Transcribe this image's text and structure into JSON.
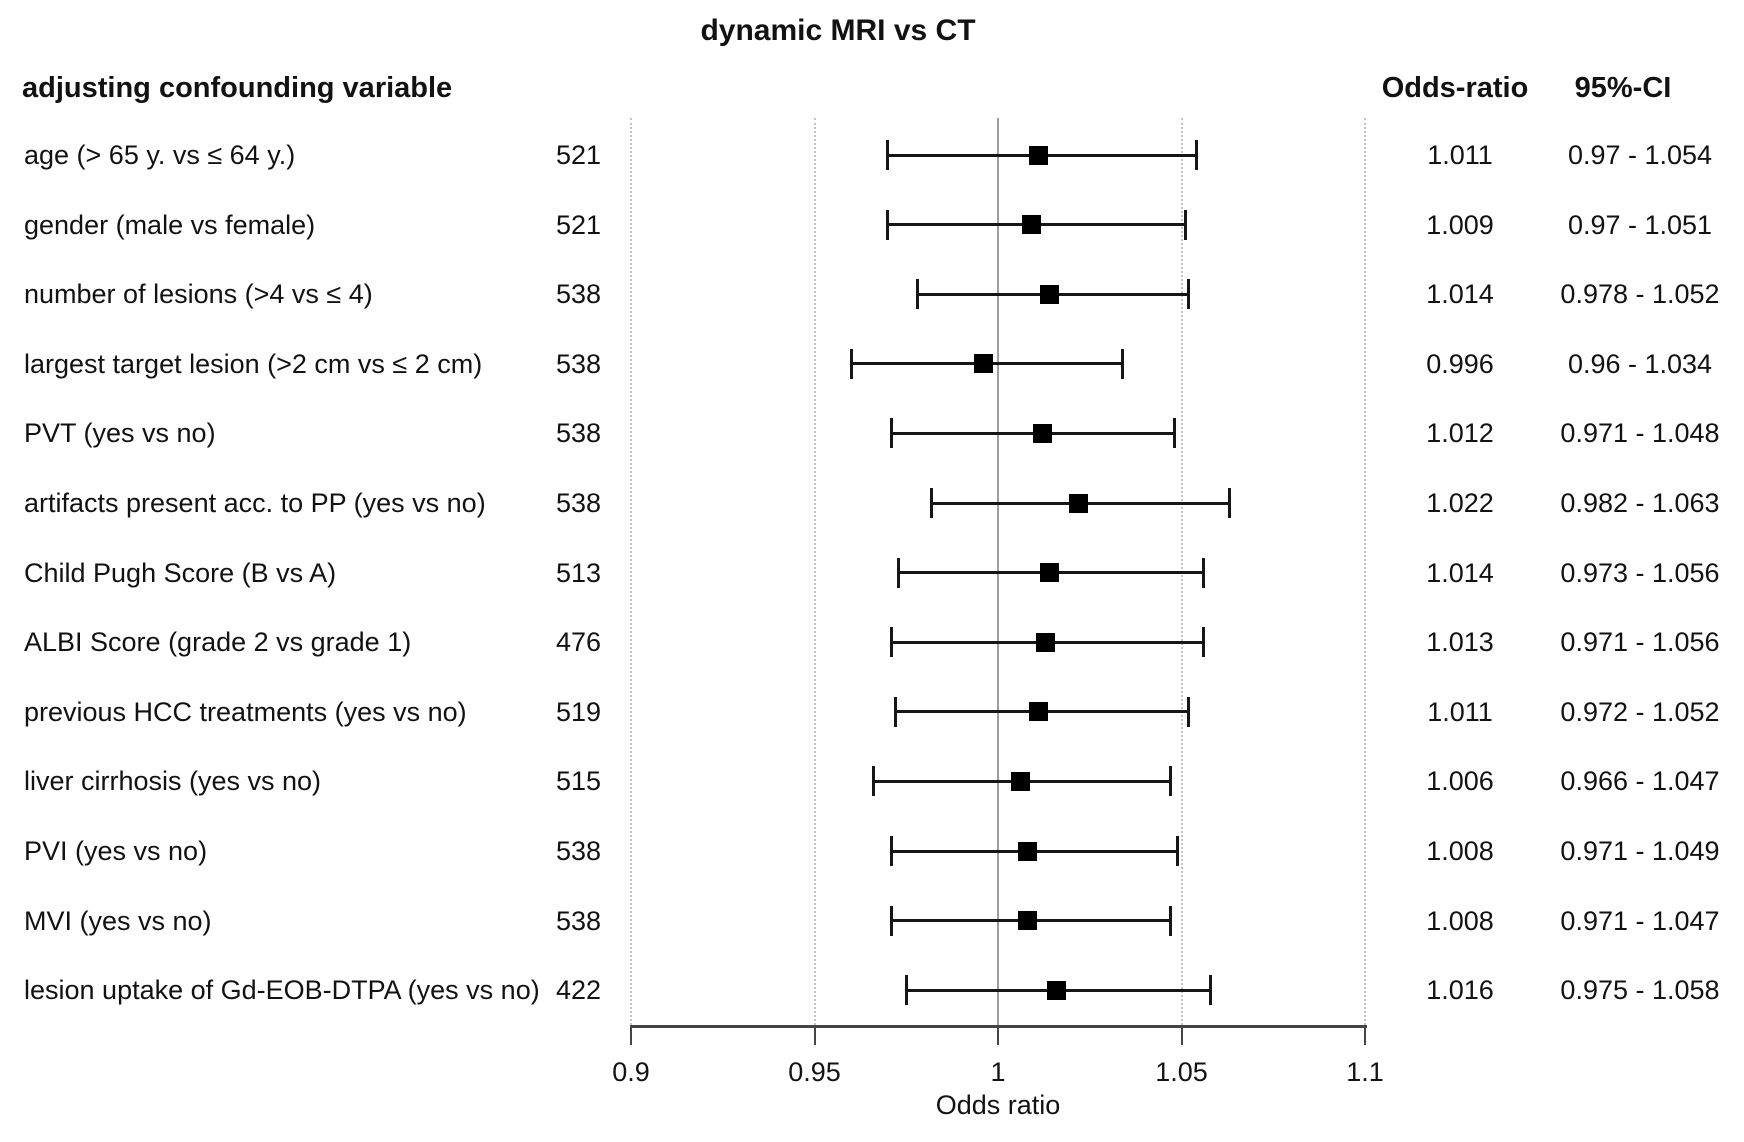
{
  "title": "dynamic MRI vs CT",
  "header": {
    "variable_col": "adjusting confounding variable",
    "or_col": "Odds-ratio",
    "ci_col": "95%-CI"
  },
  "chart_data": {
    "type": "forest",
    "title": "dynamic MRI vs CT",
    "xlabel": "Odds ratio",
    "xlim": [
      0.9,
      1.1
    ],
    "x_ticks": [
      {
        "value": 0.9,
        "label": "0.9"
      },
      {
        "value": 0.95,
        "label": "0.95"
      },
      {
        "value": 1.0,
        "label": "1"
      },
      {
        "value": 1.05,
        "label": "1.05"
      },
      {
        "value": 1.1,
        "label": "1.1"
      }
    ],
    "gridlines": {
      "dotted": [
        0.9,
        0.95,
        1.05,
        1.1
      ],
      "solid_reference": 1.0
    },
    "rows": [
      {
        "label": "age (> 65 y. vs ≤ 64 y.)",
        "n": "521",
        "or": 1.011,
        "ci_low": 0.97,
        "ci_high": 1.054,
        "or_text": "1.011",
        "ci_text": "0.97 - 1.054"
      },
      {
        "label": "gender (male vs female)",
        "n": "521",
        "or": 1.009,
        "ci_low": 0.97,
        "ci_high": 1.051,
        "or_text": "1.009",
        "ci_text": "0.97 - 1.051"
      },
      {
        "label": "number of lesions (>4 vs ≤ 4)",
        "n": "538",
        "or": 1.014,
        "ci_low": 0.978,
        "ci_high": 1.052,
        "or_text": "1.014",
        "ci_text": "0.978 - 1.052"
      },
      {
        "label": "largest target lesion (>2 cm vs ≤ 2 cm)",
        "n": "538",
        "or": 0.996,
        "ci_low": 0.96,
        "ci_high": 1.034,
        "or_text": "0.996",
        "ci_text": "0.96 - 1.034"
      },
      {
        "label": "PVT (yes vs no)",
        "n": "538",
        "or": 1.012,
        "ci_low": 0.971,
        "ci_high": 1.048,
        "or_text": "1.012",
        "ci_text": "0.971 - 1.048"
      },
      {
        "label": "artifacts present acc. to PP (yes vs no)",
        "n": "538",
        "or": 1.022,
        "ci_low": 0.982,
        "ci_high": 1.063,
        "or_text": "1.022",
        "ci_text": "0.982 - 1.063"
      },
      {
        "label": "Child Pugh Score (B vs A)",
        "n": "513",
        "or": 1.014,
        "ci_low": 0.973,
        "ci_high": 1.056,
        "or_text": "1.014",
        "ci_text": "0.973 - 1.056"
      },
      {
        "label": "ALBI Score (grade 2 vs grade 1)",
        "n": "476",
        "or": 1.013,
        "ci_low": 0.971,
        "ci_high": 1.056,
        "or_text": "1.013",
        "ci_text": "0.971 - 1.056"
      },
      {
        "label": "previous HCC treatments (yes vs no)",
        "n": "519",
        "or": 1.011,
        "ci_low": 0.972,
        "ci_high": 1.052,
        "or_text": "1.011",
        "ci_text": "0.972 - 1.052"
      },
      {
        "label": "liver cirrhosis (yes vs no)",
        "n": "515",
        "or": 1.006,
        "ci_low": 0.966,
        "ci_high": 1.047,
        "or_text": "1.006",
        "ci_text": "0.966 - 1.047"
      },
      {
        "label": "PVI (yes vs no)",
        "n": "538",
        "or": 1.008,
        "ci_low": 0.971,
        "ci_high": 1.049,
        "or_text": "1.008",
        "ci_text": "0.971 - 1.049"
      },
      {
        "label": "MVI (yes vs no)",
        "n": "538",
        "or": 1.008,
        "ci_low": 0.971,
        "ci_high": 1.047,
        "or_text": "1.008",
        "ci_text": "0.971 - 1.047"
      },
      {
        "label": "lesion uptake of Gd-EOB-DTPA (yes vs no)",
        "n": "422",
        "or": 1.016,
        "ci_low": 0.975,
        "ci_high": 1.058,
        "or_text": "1.016",
        "ci_text": "0.975 - 1.058"
      }
    ]
  },
  "colors": {
    "text": "#121212",
    "marker": "#000000",
    "whisker": "#161616",
    "gridline_dotted": "#c3c3c3",
    "reference_line": "#9e9e9e",
    "axis": "#454545"
  }
}
